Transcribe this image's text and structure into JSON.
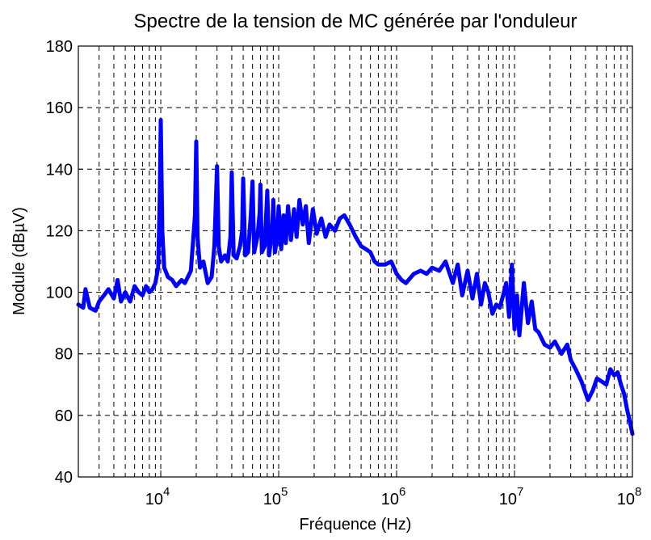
{
  "chart_data": {
    "type": "line",
    "title": "Spectre de la tension de MC générée par l'onduleur",
    "xlabel": "Fréquence (Hz)",
    "ylabel": "Module (dBµV)",
    "xscale": "log",
    "grid": true,
    "xlim": [
      2000,
      100000000
    ],
    "ylim": [
      40,
      180
    ],
    "yticks": [
      40,
      60,
      80,
      100,
      120,
      140,
      160,
      180
    ],
    "xticks": [
      {
        "value": 10000,
        "label": "10",
        "exponent": "4"
      },
      {
        "value": 100000,
        "label": "10",
        "exponent": "5"
      },
      {
        "value": 1000000,
        "label": "10",
        "exponent": "6"
      },
      {
        "value": 10000000,
        "label": "10",
        "exponent": "7"
      },
      {
        "value": 100000000,
        "label": "10",
        "exponent": "8"
      }
    ],
    "xminorticks": [
      2000,
      3000,
      4000,
      5000,
      6000,
      7000,
      8000,
      9000,
      20000,
      30000,
      40000,
      50000,
      60000,
      70000,
      80000,
      90000,
      200000,
      300000,
      400000,
      500000,
      600000,
      700000,
      800000,
      900000,
      2000000,
      3000000,
      4000000,
      5000000,
      6000000,
      7000000,
      8000000,
      9000000,
      20000000,
      30000000,
      40000000,
      50000000,
      60000000,
      70000000,
      80000000,
      90000000
    ],
    "x": [
      2000,
      2200,
      2300,
      2500,
      2800,
      3000,
      3300,
      3600,
      4000,
      4300,
      4600,
      5000,
      5500,
      6000,
      6500,
      7000,
      7500,
      8000,
      8500,
      9000,
      9500,
      9800,
      10000,
      10300,
      10700,
      11500,
      12500,
      13500,
      15000,
      16000,
      17000,
      18000,
      19500,
      20000,
      20500,
      21500,
      23000,
      25000,
      27000,
      28500,
      30000,
      31000,
      32500,
      35000,
      37000,
      39000,
      40000,
      41500,
      44000,
      47000,
      49000,
      50000,
      52000,
      55000,
      58000,
      60000,
      62000,
      66000,
      69000,
      70000,
      72000,
      76000,
      79000,
      80000,
      83000,
      88000,
      90000,
      93000,
      97000,
      100000,
      105000,
      110000,
      115000,
      120000,
      127000,
      135000,
      142000,
      150000,
      160000,
      170000,
      180000,
      195000,
      210000,
      230000,
      250000,
      270000,
      300000,
      330000,
      360000,
      400000,
      450000,
      500000,
      550000,
      600000,
      650000,
      700000,
      800000,
      900000,
      1000000,
      1100000,
      1200000,
      1400000,
      1600000,
      1800000,
      2000000,
      2300000,
      2600000,
      3000000,
      3300000,
      3600000,
      4000000,
      4400000,
      4800000,
      5200000,
      5600000,
      6000000,
      6500000,
      7000000,
      7500000,
      8000000,
      8500000,
      9000000,
      9500000,
      10000000,
      10500000,
      11000000,
      12000000,
      13000000,
      14000000,
      15000000,
      16000000,
      18000000,
      20000000,
      22000000,
      25000000,
      28000000,
      30000000,
      33000000,
      37000000,
      42000000,
      46000000,
      50000000,
      55000000,
      60000000,
      65000000,
      70000000,
      75000000,
      80000000,
      85000000,
      90000000,
      95000000,
      100000000
    ],
    "series": [
      {
        "color": "#0000ff",
        "values": [
          96,
          95,
          101,
          95,
          94,
          97,
          99,
          101,
          98,
          104,
          97,
          100,
          97,
          102,
          100,
          99,
          102,
          100,
          101,
          103,
          108,
          130,
          156,
          120,
          108,
          105,
          104,
          102,
          104,
          103,
          105,
          107,
          125,
          149,
          118,
          108,
          110,
          103,
          105,
          115,
          141,
          115,
          110,
          112,
          110,
          118,
          139,
          112,
          111,
          115,
          120,
          137,
          112,
          113,
          125,
          136,
          113,
          118,
          126,
          135,
          113,
          115,
          128,
          133,
          112,
          120,
          130,
          113,
          118,
          128,
          114,
          125,
          116,
          128,
          117,
          127,
          118,
          130,
          122,
          128,
          116,
          127,
          119,
          124,
          118,
          122,
          120,
          124,
          125,
          122,
          118,
          115,
          114,
          113,
          110,
          109,
          109,
          110,
          106,
          104,
          103,
          106,
          107,
          106,
          108,
          107,
          110,
          103,
          109,
          99,
          107,
          98,
          106,
          96,
          103,
          100,
          93,
          96,
          95,
          99,
          103,
          92,
          109,
          88,
          99,
          86,
          103,
          90,
          97,
          88,
          87,
          83,
          82,
          84,
          80,
          83,
          78,
          75,
          71,
          65,
          68,
          72,
          71,
          70,
          75,
          73,
          74,
          70,
          67,
          62,
          58,
          54
        ]
      }
    ]
  }
}
